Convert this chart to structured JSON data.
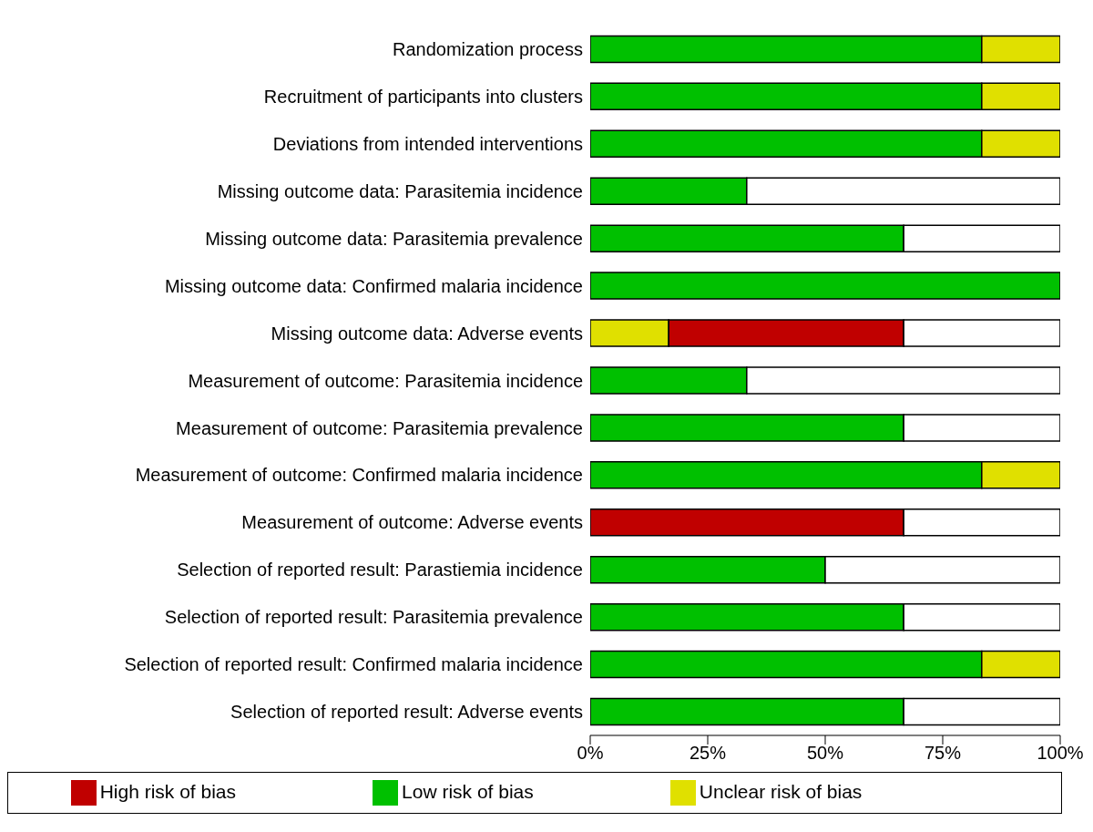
{
  "chart_data": {
    "type": "bar",
    "orientation": "horizontal",
    "stacked": true,
    "categories": [
      "Randomization process",
      "Recruitment of participants into clusters",
      "Deviations from intended interventions",
      "Missing outcome data: Parasitemia incidence",
      "Missing outcome data: Parasitemia prevalence",
      "Missing outcome data: Confirmed malaria incidence",
      "Missing outcome data: Adverse events",
      "Measurement of outcome: Parasitemia incidence",
      "Measurement of outcome: Parasitemia prevalence",
      "Measurement of outcome: Confirmed malaria incidence",
      "Measurement of outcome: Adverse events",
      "Selection of reported result: Parastiemia incidence",
      "Selection of reported result: Parasitemia prevalence",
      "Selection of reported result: Confirmed malaria incidence",
      "Selection of reported result: Adverse events"
    ],
    "series": [
      {
        "name": "Low risk of bias",
        "color": "#00c000",
        "values": [
          83.3,
          83.3,
          83.3,
          33.3,
          66.7,
          100,
          0,
          33.3,
          66.7,
          83.3,
          0,
          50,
          66.7,
          83.3,
          66.7
        ]
      },
      {
        "name": "Unclear risk of bias",
        "color": "#e0e000",
        "values": [
          16.7,
          16.7,
          16.7,
          0,
          0,
          0,
          16.7,
          0,
          0,
          16.7,
          0,
          0,
          0,
          16.7,
          0
        ]
      },
      {
        "name": "High risk of bias",
        "color": "#c00000",
        "values": [
          0,
          0,
          0,
          0,
          0,
          0,
          50,
          0,
          0,
          0,
          66.7,
          0,
          0,
          0,
          0
        ]
      },
      {
        "color": "#ffffff",
        "values": [
          0,
          0,
          0,
          66.7,
          33.3,
          0,
          33.3,
          66.7,
          33.3,
          0,
          33.3,
          50,
          33.3,
          0,
          33.3
        ]
      }
    ],
    "xlim": [
      0,
      100
    ],
    "xticks": [
      {
        "value": 0,
        "label": "0%"
      },
      {
        "value": 25,
        "label": "25%"
      },
      {
        "value": 50,
        "label": "50%"
      },
      {
        "value": 75,
        "label": "75%"
      },
      {
        "value": 100,
        "label": "100%"
      }
    ],
    "grid": false,
    "legend": "bottom"
  }
}
